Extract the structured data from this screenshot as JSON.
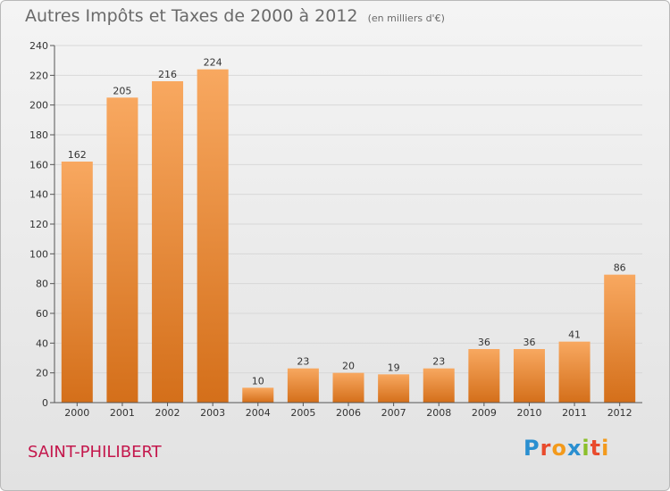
{
  "title": "Autres Impôts et Taxes de 2000 à 2012",
  "subtitle": "(en milliers d'€)",
  "commune": "SAINT-PHILIBERT",
  "logo": {
    "text": "Proxiti",
    "letters": [
      {
        "char": "P",
        "color": "#2a8fd0"
      },
      {
        "char": "r",
        "color": "#e94b2d"
      },
      {
        "char": "o",
        "color": "#f39a1c"
      },
      {
        "char": "x",
        "color": "#2a8fd0"
      },
      {
        "char": "i",
        "color": "#8bbf2a"
      },
      {
        "char": "t",
        "color": "#e94b2d"
      },
      {
        "char": "i",
        "color": "#f39a1c"
      }
    ]
  },
  "colors": {
    "bar_top": "#f8a860",
    "bar_bottom": "#d46f1a",
    "grid": "#d8d8d8",
    "axis": "#555555"
  },
  "chart_data": {
    "type": "bar",
    "title": "Autres Impôts et Taxes de 2000 à 2012",
    "subtitle": "(en milliers d'€)",
    "categories": [
      "2000",
      "2001",
      "2002",
      "2003",
      "2004",
      "2005",
      "2006",
      "2007",
      "2008",
      "2009",
      "2010",
      "2011",
      "2012"
    ],
    "values": [
      162,
      205,
      216,
      224,
      10,
      23,
      20,
      19,
      23,
      36,
      36,
      41,
      86
    ],
    "yticks": [
      0,
      20,
      40,
      60,
      80,
      100,
      120,
      140,
      160,
      180,
      200,
      220,
      240
    ],
    "ylim": [
      0,
      240
    ],
    "grid": true,
    "legend": "none"
  }
}
